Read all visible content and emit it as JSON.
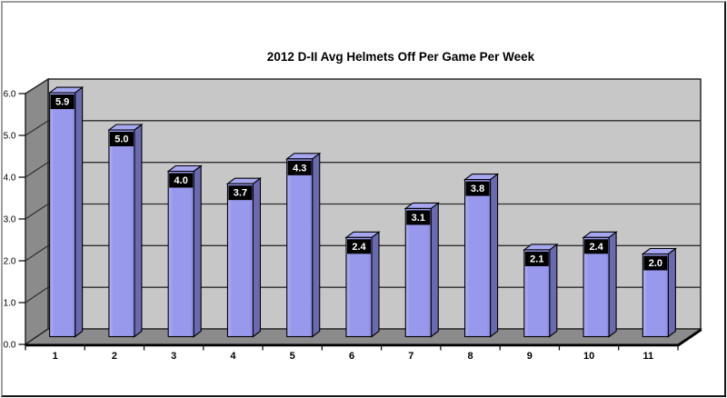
{
  "chart_data": {
    "type": "bar",
    "style": "3d-clustered-column",
    "title": "2012 D-II Avg Helmets Off Per Game Per Week",
    "xlabel": "",
    "ylabel": "",
    "categories": [
      "1",
      "2",
      "3",
      "4",
      "5",
      "6",
      "7",
      "8",
      "9",
      "10",
      "11"
    ],
    "values": [
      5.9,
      5.0,
      4.0,
      3.7,
      4.3,
      2.4,
      3.1,
      3.8,
      2.1,
      2.4,
      2.0
    ],
    "value_labels": [
      "5.9",
      "5.0",
      "4.0",
      "3.7",
      "4.3",
      "2.4",
      "3.1",
      "3.8",
      "2.1",
      "2.4",
      "2.0"
    ],
    "ylim": [
      0,
      6
    ],
    "ytick_labels": [
      "0.0",
      "1.0",
      "2.0",
      "3.0",
      "4.0",
      "5.0",
      "6.0"
    ],
    "grid": "horizontal-major",
    "legend": "none",
    "colors": {
      "background": "#ffffff",
      "back_wall": "#c7c7c7",
      "side_wall": "#8b8b8b",
      "floor": "#8b8b8b",
      "wall_edge": "#1c1c1c",
      "gridline": "#2e2e2e",
      "bar_front": "#9898ec",
      "bar_front_light": "#b2b2f4",
      "bar_front_dark": "#8a8ae4",
      "bar_side": "#6a6aae",
      "bar_top": "#a7a7f0",
      "bar_outline": "#000000",
      "value_box_bg": "#000000",
      "value_box_text": "#ffffff",
      "axis_text": "#000000",
      "frame_light": "#9e9e9e",
      "frame_dark": "#161616"
    }
  }
}
